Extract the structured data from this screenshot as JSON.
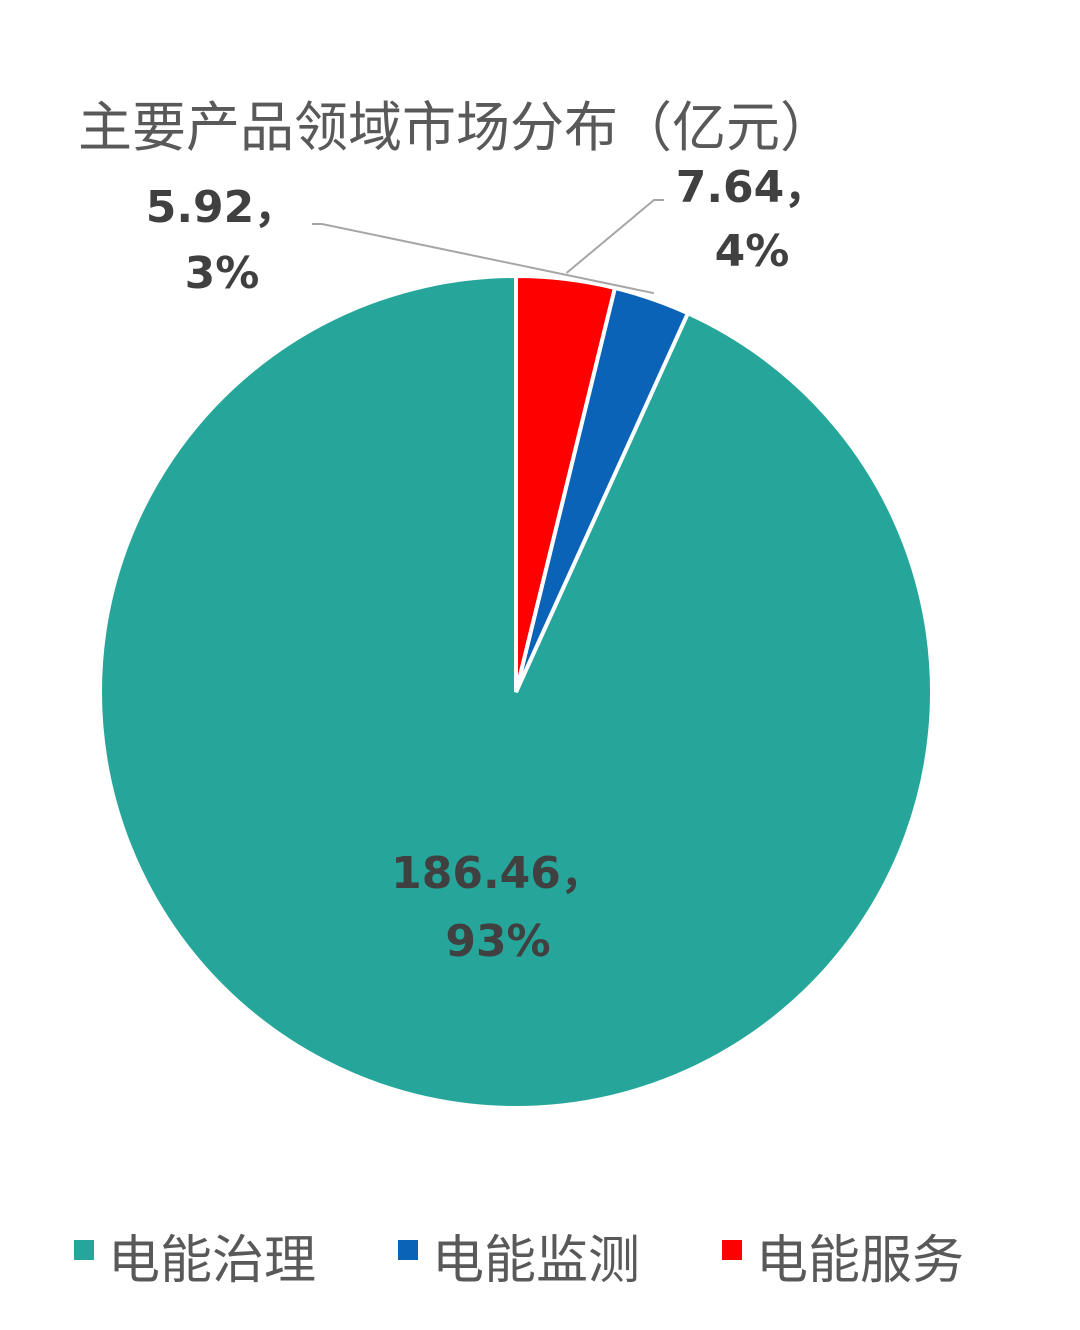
{
  "chart_data": {
    "type": "pie",
    "title": "主要产品领域市场分布（亿元）",
    "categories": [
      "电能治理",
      "电能监测",
      "电能服务"
    ],
    "values": [
      186.46,
      5.92,
      7.64
    ],
    "percent_labels": [
      "93%",
      "3%",
      "4%"
    ],
    "value_labels": [
      "186.46，",
      "5.92，",
      "7.64，"
    ],
    "colors": [
      "#26A69A",
      "#0B63B8",
      "#FF0000"
    ],
    "start_angle_deg": 0,
    "direction": "counterclockwise",
    "legend_position": "bottom"
  }
}
